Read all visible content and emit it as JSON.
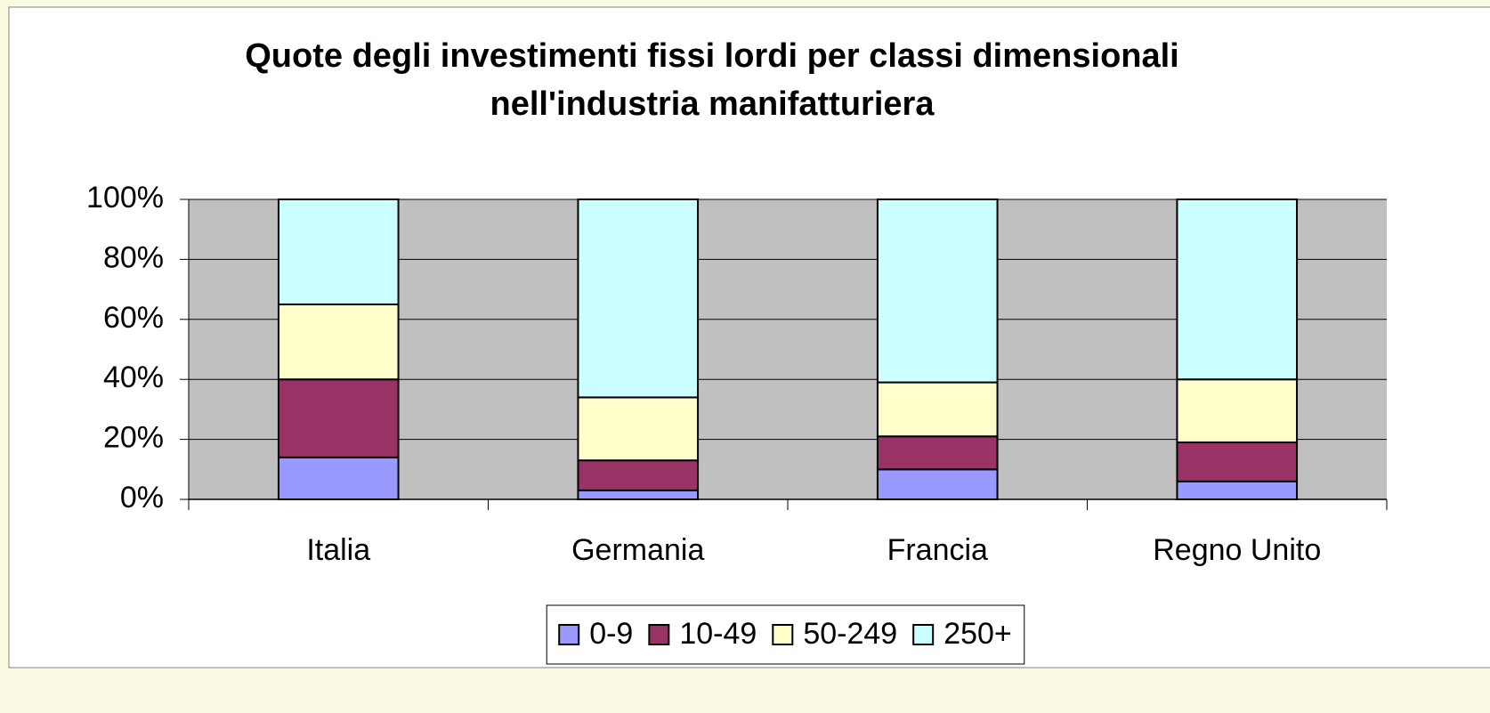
{
  "chart_data": {
    "type": "bar",
    "stacked": true,
    "title": "Quote degli investimenti fissi lordi per classi dimensionali nell'industria manifatturiera",
    "categories": [
      "Italia",
      "Germania",
      "Francia",
      "Regno Unito"
    ],
    "series": [
      {
        "name": "0-9",
        "color": "#9999ff",
        "values": [
          14,
          3,
          10,
          6
        ]
      },
      {
        "name": "10-49",
        "color": "#993366",
        "values": [
          26,
          10,
          11,
          13
        ]
      },
      {
        "name": "50-249",
        "color": "#ffffcc",
        "values": [
          25,
          21,
          18,
          21
        ]
      },
      {
        "name": "250+",
        "color": "#ccffff",
        "values": [
          35,
          66,
          61,
          60
        ]
      }
    ],
    "ylim": [
      0,
      100
    ],
    "yticks": [
      {
        "value": 0,
        "label": "0%"
      },
      {
        "value": 20,
        "label": "20%"
      },
      {
        "value": 40,
        "label": "40%"
      },
      {
        "value": 60,
        "label": "60%"
      },
      {
        "value": 80,
        "label": "80%"
      },
      {
        "value": 100,
        "label": "100%"
      }
    ],
    "grid": true,
    "legend": "bottom"
  }
}
